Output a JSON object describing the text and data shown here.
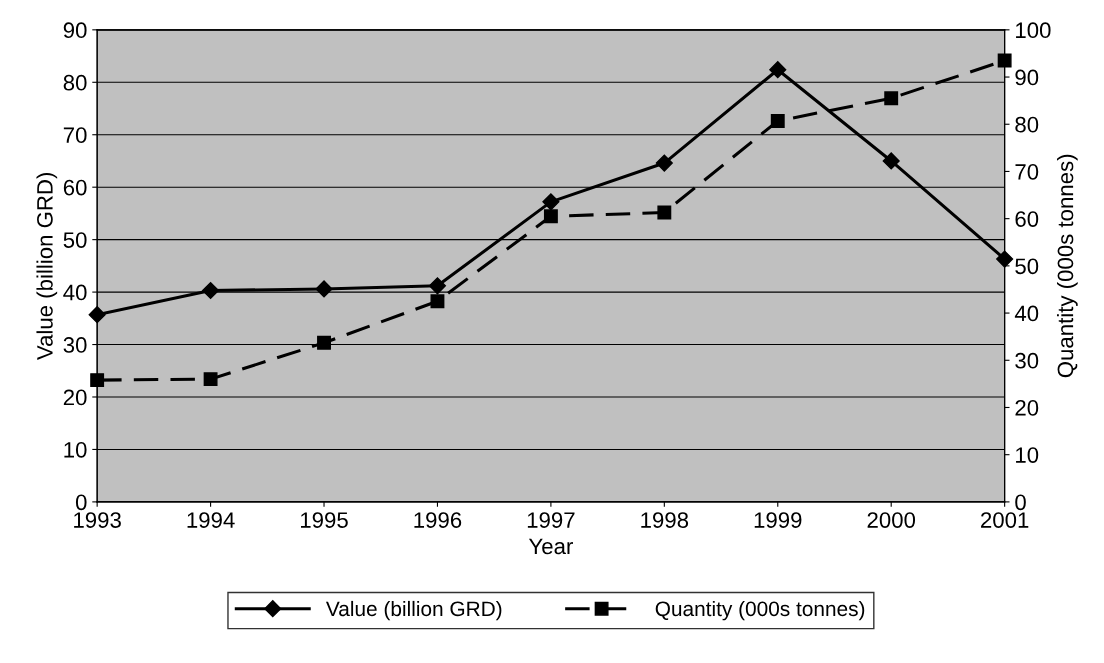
{
  "chart_data": {
    "type": "line",
    "xlabel": "Year",
    "ylabel": "Value (billion GRD)",
    "y2label": "Quantity (000s tonnes)",
    "categories": [
      "1993",
      "1994",
      "1995",
      "1996",
      "1997",
      "1998",
      "1999",
      "2000",
      "2001"
    ],
    "series": [
      {
        "name": "Value (billion GRD)",
        "color": "#000000",
        "marker": "diamond",
        "line_style": "solid",
        "values": [
          35.7,
          40.3,
          40.6,
          41.2,
          57.2,
          64.6,
          82.4,
          65.0,
          46.3
        ]
      },
      {
        "name": "Quantity (000s tonnes)",
        "color": "#000000",
        "marker": "square",
        "line_style": "dashed",
        "axis": "y2",
        "values": [
          25.8,
          26.0,
          33.7,
          42.5,
          60.5,
          61.3,
          80.7,
          85.5,
          93.5
        ]
      }
    ],
    "ylim": [
      0,
      90
    ],
    "yticks": [
      0,
      10,
      20,
      30,
      40,
      50,
      60,
      70,
      80,
      90
    ],
    "y2lim": [
      0,
      100
    ],
    "y2ticks": [
      0,
      10,
      20,
      30,
      40,
      50,
      60,
      70,
      80,
      90,
      100
    ],
    "grid": "y",
    "legend": "bottom"
  }
}
